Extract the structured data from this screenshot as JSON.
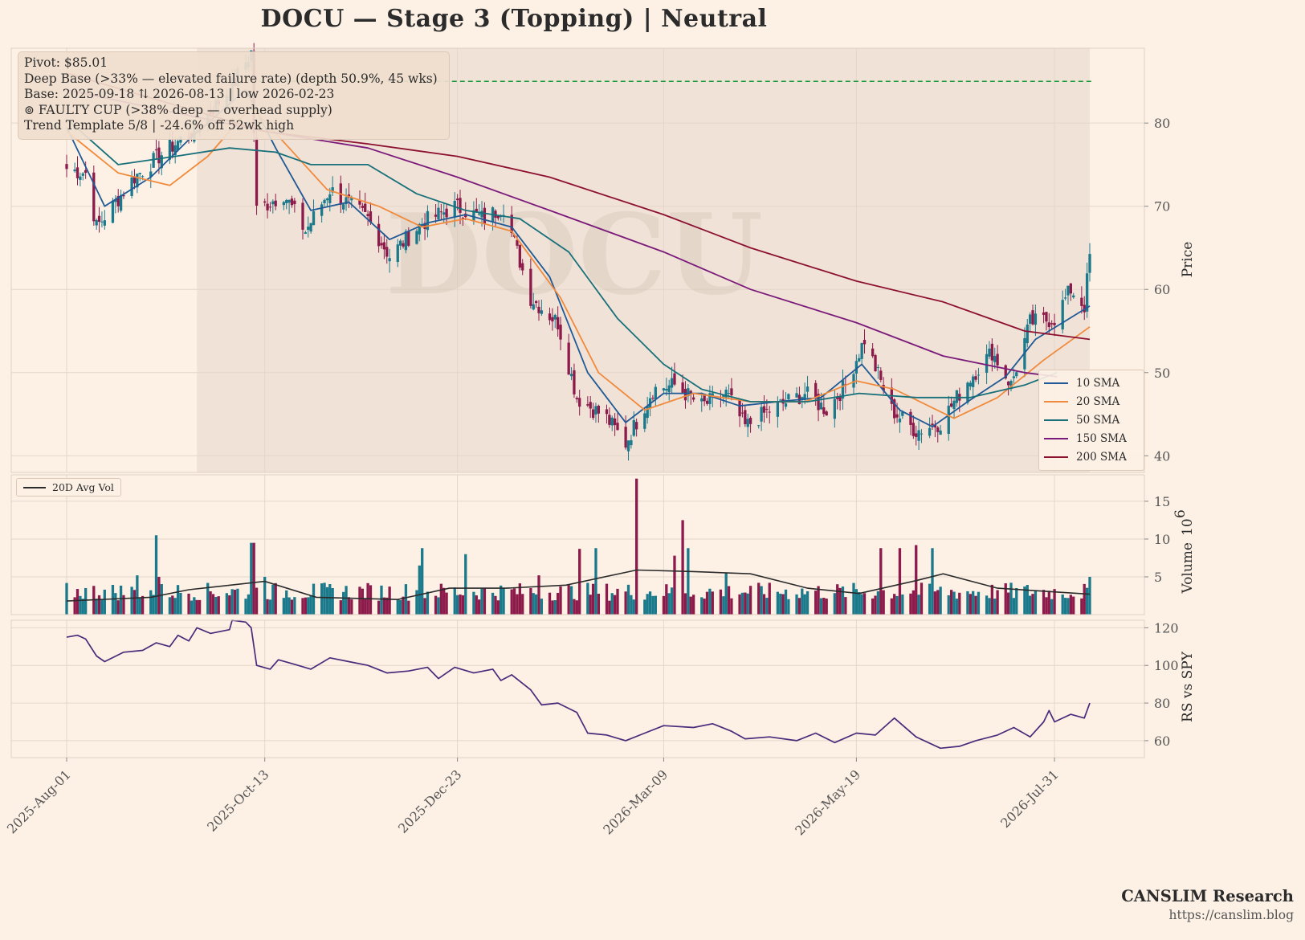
{
  "title": "DOCU  —  Stage 3 (Topping)  |  Neutral",
  "watermark": "DOCU",
  "info_box": {
    "lines": [
      "Pivot: $85.01",
      "Deep Base (>33% — elevated failure rate)  (depth 50.9%, 45 wks)",
      "Base: 2025-09-18 ⇅ 2026-08-13  |  low 2026-02-23",
      "⊚ FAULTY CUP (>38% deep — overhead supply)",
      "Trend Template 5/8  |  -24.6% off 52wk high"
    ]
  },
  "legend": {
    "sma": [
      {
        "label": "10 SMA",
        "color": "#1f5a96"
      },
      {
        "label": "20 SMA",
        "color": "#f08a3c"
      },
      {
        "label": "50 SMA",
        "color": "#17707a"
      },
      {
        "label": "150 SMA",
        "color": "#7a1a7a"
      },
      {
        "label": "200 SMA",
        "color": "#8c1030"
      }
    ],
    "volume": "20D Avg Vol"
  },
  "brand": {
    "name": "CANSLIM Research",
    "url": "https://canslim.blog"
  },
  "colors": {
    "background": "#fdf1e6",
    "up_candle": "#1a7a8c",
    "down_candle": "#8c1a4a",
    "pivot_line": "#1a9a3a",
    "rs_line": "#4a2a7a",
    "base_shade": "#e8d6cb"
  },
  "chart_data": {
    "type": "candlestick",
    "x_tick_labels": [
      "2025-Aug-01",
      "2025-Oct-13",
      "2025-Dec-23",
      "2026-Mar-09",
      "2026-May-19",
      "2026-Jul-31"
    ],
    "x_range": [
      "2025-08-01",
      "2026-08-13"
    ],
    "price": {
      "ylabel": "Price",
      "yticks": [
        40,
        50,
        60,
        70,
        80
      ],
      "ylim": [
        38,
        89
      ],
      "pivot": 85.01,
      "base_start": "2025-09-18",
      "base_end": "2026-08-13",
      "anchors": [
        {
          "date": "2025-08-01",
          "close": 74.5
        },
        {
          "date": "2025-08-08",
          "close": 74.0
        },
        {
          "date": "2025-08-12",
          "close": 67.5
        },
        {
          "date": "2025-08-19",
          "close": 70.5
        },
        {
          "date": "2025-08-26",
          "close": 73.5
        },
        {
          "date": "2025-09-04",
          "close": 76.0
        },
        {
          "date": "2025-09-18",
          "close": 79.5
        },
        {
          "date": "2025-10-01",
          "close": 84.5
        },
        {
          "date": "2025-10-08",
          "close": 88.5
        },
        {
          "date": "2025-10-10",
          "close": 69.5
        },
        {
          "date": "2025-10-20",
          "close": 71.5
        },
        {
          "date": "2025-10-28",
          "close": 67.0
        },
        {
          "date": "2025-11-06",
          "close": 72.0
        },
        {
          "date": "2025-11-20",
          "close": 68.5
        },
        {
          "date": "2025-11-28",
          "close": 64.0
        },
        {
          "date": "2025-12-10",
          "close": 68.0
        },
        {
          "date": "2025-12-22",
          "close": 70.0
        },
        {
          "date": "2026-01-02",
          "close": 68.5
        },
        {
          "date": "2026-01-09",
          "close": 70.0
        },
        {
          "date": "2026-01-19",
          "close": 59.0
        },
        {
          "date": "2026-01-29",
          "close": 56.0
        },
        {
          "date": "2026-02-05",
          "close": 47.0
        },
        {
          "date": "2026-02-16",
          "close": 44.5
        },
        {
          "date": "2026-02-23",
          "close": 41.5
        },
        {
          "date": "2026-03-05",
          "close": 48.0
        },
        {
          "date": "2026-03-13",
          "close": 48.5
        },
        {
          "date": "2026-03-23",
          "close": 46.0
        },
        {
          "date": "2026-04-01",
          "close": 47.5
        },
        {
          "date": "2026-04-08",
          "close": 43.5
        },
        {
          "date": "2026-04-17",
          "close": 45.5
        },
        {
          "date": "2026-04-30",
          "close": 47.5
        },
        {
          "date": "2026-05-08",
          "close": 45.5
        },
        {
          "date": "2026-05-15",
          "close": 48.5
        },
        {
          "date": "2026-05-22",
          "close": 54.0
        },
        {
          "date": "2026-06-01",
          "close": 45.5
        },
        {
          "date": "2026-06-10",
          "close": 43.0
        },
        {
          "date": "2026-06-19",
          "close": 44.0
        },
        {
          "date": "2026-06-29",
          "close": 49.0
        },
        {
          "date": "2026-07-08",
          "close": 52.5
        },
        {
          "date": "2026-07-15",
          "close": 48.5
        },
        {
          "date": "2026-07-22",
          "close": 56.0
        },
        {
          "date": "2026-07-31",
          "close": 56.5
        },
        {
          "date": "2026-08-06",
          "close": 60.0
        },
        {
          "date": "2026-08-11",
          "close": 58.0
        },
        {
          "date": "2026-08-13",
          "close": 64.0
        }
      ],
      "sma": {
        "10 SMA": [
          [
            "2025-08-01",
            79.5
          ],
          [
            "2025-08-15",
            70.0
          ],
          [
            "2025-09-01",
            73.5
          ],
          [
            "2025-09-15",
            78.0
          ],
          [
            "2025-10-06",
            84.0
          ],
          [
            "2025-10-17",
            77.0
          ],
          [
            "2025-10-30",
            69.5
          ],
          [
            "2025-11-13",
            70.5
          ],
          [
            "2025-11-28",
            66.0
          ],
          [
            "2025-12-12",
            68.0
          ],
          [
            "2025-12-26",
            69.0
          ],
          [
            "2026-01-12",
            67.5
          ],
          [
            "2026-01-26",
            61.5
          ],
          [
            "2026-02-09",
            50.0
          ],
          [
            "2026-02-23",
            44.0
          ],
          [
            "2026-03-09",
            47.5
          ],
          [
            "2026-03-23",
            47.5
          ],
          [
            "2026-04-06",
            46.0
          ],
          [
            "2026-04-20",
            46.5
          ],
          [
            "2026-05-06",
            47.0
          ],
          [
            "2026-05-21",
            51.0
          ],
          [
            "2026-06-04",
            45.5
          ],
          [
            "2026-06-16",
            43.5
          ],
          [
            "2026-06-29",
            46.5
          ],
          [
            "2026-07-13",
            49.5
          ],
          [
            "2026-07-24",
            54.0
          ],
          [
            "2026-08-13",
            58.0
          ]
        ],
        "20 SMA": [
          [
            "2025-08-01",
            79.0
          ],
          [
            "2025-08-20",
            74.0
          ],
          [
            "2025-09-08",
            72.5
          ],
          [
            "2025-09-22",
            76.0
          ],
          [
            "2025-10-08",
            82.0
          ],
          [
            "2025-10-22",
            77.0
          ],
          [
            "2025-11-05",
            72.0
          ],
          [
            "2025-11-24",
            70.0
          ],
          [
            "2025-12-10",
            67.5
          ],
          [
            "2025-12-26",
            68.5
          ],
          [
            "2026-01-12",
            67.0
          ],
          [
            "2026-01-30",
            59.0
          ],
          [
            "2026-02-13",
            50.0
          ],
          [
            "2026-03-02",
            45.5
          ],
          [
            "2026-03-20",
            47.5
          ],
          [
            "2026-04-10",
            46.5
          ],
          [
            "2026-04-30",
            46.5
          ],
          [
            "2026-05-19",
            49.0
          ],
          [
            "2026-06-02",
            48.0
          ],
          [
            "2026-06-24",
            44.5
          ],
          [
            "2026-07-10",
            47.0
          ],
          [
            "2026-07-27",
            51.5
          ],
          [
            "2026-08-13",
            55.5
          ]
        ],
        "50 SMA": [
          [
            "2025-08-01",
            80.5
          ],
          [
            "2025-08-20",
            75.0
          ],
          [
            "2025-09-10",
            76.0
          ],
          [
            "2025-09-30",
            77.0
          ],
          [
            "2025-10-17",
            76.5
          ],
          [
            "2025-10-30",
            75.0
          ],
          [
            "2025-11-20",
            75.0
          ],
          [
            "2025-12-08",
            71.5
          ],
          [
            "2025-12-26",
            69.5
          ],
          [
            "2026-01-15",
            68.5
          ],
          [
            "2026-02-02",
            64.5
          ],
          [
            "2026-02-20",
            56.5
          ],
          [
            "2026-03-09",
            51.0
          ],
          [
            "2026-03-23",
            48.0
          ],
          [
            "2026-04-10",
            46.5
          ],
          [
            "2026-05-01",
            46.5
          ],
          [
            "2026-05-20",
            47.5
          ],
          [
            "2026-06-10",
            47.0
          ],
          [
            "2026-06-30",
            47.0
          ],
          [
            "2026-07-20",
            48.5
          ],
          [
            "2026-08-01",
            50.0
          ]
        ],
        "150 SMA": [
          [
            "2025-08-01",
            84.0
          ],
          [
            "2025-10-13",
            79.0
          ],
          [
            "2025-11-20",
            77.0
          ],
          [
            "2025-12-23",
            73.5
          ],
          [
            "2026-01-26",
            69.5
          ],
          [
            "2026-03-09",
            64.5
          ],
          [
            "2026-04-10",
            60.0
          ],
          [
            "2026-05-19",
            56.0
          ],
          [
            "2026-06-20",
            52.0
          ],
          [
            "2026-07-20",
            50.0
          ],
          [
            "2026-08-01",
            49.5
          ]
        ],
        "200 SMA": [
          [
            "2025-08-01",
            86.0
          ],
          [
            "2025-10-13",
            79.0
          ],
          [
            "2025-11-20",
            77.5
          ],
          [
            "2025-12-23",
            76.0
          ],
          [
            "2026-01-26",
            73.5
          ],
          [
            "2026-03-09",
            69.0
          ],
          [
            "2026-04-10",
            65.0
          ],
          [
            "2026-05-19",
            61.0
          ],
          [
            "2026-06-20",
            58.5
          ],
          [
            "2026-07-20",
            55.0
          ],
          [
            "2026-08-13",
            54.0
          ]
        ]
      }
    },
    "volume": {
      "ylabel": "Volume",
      "unit": "10^6",
      "yticks": [
        5,
        10,
        15
      ],
      "ylim": [
        0,
        18.5
      ],
      "base_level": 2.8,
      "spikes": [
        {
          "date": "2025-08-27",
          "value": 5.2
        },
        {
          "date": "2025-09-03",
          "value": 10.5
        },
        {
          "date": "2025-09-04",
          "value": 5.0
        },
        {
          "date": "2025-10-08",
          "value": 9.5
        },
        {
          "date": "2025-10-09",
          "value": 9.5
        },
        {
          "date": "2025-10-13",
          "value": 5.0
        },
        {
          "date": "2025-12-09",
          "value": 6.5
        },
        {
          "date": "2025-12-10",
          "value": 8.8
        },
        {
          "date": "2025-12-26",
          "value": 8.0
        },
        {
          "date": "2026-01-22",
          "value": 5.2
        },
        {
          "date": "2026-02-06",
          "value": 8.7
        },
        {
          "date": "2026-02-12",
          "value": 8.8
        },
        {
          "date": "2026-02-27",
          "value": 18.0
        },
        {
          "date": "2026-03-13",
          "value": 7.8
        },
        {
          "date": "2026-03-16",
          "value": 12.5
        },
        {
          "date": "2026-03-18",
          "value": 8.8
        },
        {
          "date": "2026-04-01",
          "value": 5.5
        },
        {
          "date": "2026-05-28",
          "value": 8.8
        },
        {
          "date": "2026-06-04",
          "value": 8.8
        },
        {
          "date": "2026-06-10",
          "value": 9.2
        },
        {
          "date": "2026-06-16",
          "value": 8.8
        },
        {
          "date": "2026-08-13",
          "value": 5.0
        }
      ],
      "avg_line": [
        [
          "2025-08-01",
          1.8
        ],
        [
          "2025-09-01",
          2.3
        ],
        [
          "2025-09-15",
          3.3
        ],
        [
          "2025-10-13",
          4.4
        ],
        [
          "2025-11-01",
          2.3
        ],
        [
          "2025-12-01",
          2.0
        ],
        [
          "2025-12-20",
          3.5
        ],
        [
          "2026-01-10",
          3.5
        ],
        [
          "2026-02-01",
          3.9
        ],
        [
          "2026-02-27",
          5.9
        ],
        [
          "2026-03-20",
          5.7
        ],
        [
          "2026-04-10",
          5.4
        ],
        [
          "2026-05-01",
          3.5
        ],
        [
          "2026-05-20",
          2.8
        ],
        [
          "2026-06-10",
          4.5
        ],
        [
          "2026-06-20",
          5.4
        ],
        [
          "2026-07-10",
          3.5
        ],
        [
          "2026-08-13",
          2.7
        ]
      ]
    },
    "rs": {
      "ylabel": "RS vs SPY",
      "yticks": [
        60,
        80,
        100,
        120
      ],
      "ylim": [
        51,
        124
      ],
      "anchors": [
        [
          "2025-08-01",
          115
        ],
        [
          "2025-08-05",
          116
        ],
        [
          "2025-08-08",
          114
        ],
        [
          "2025-08-12",
          105
        ],
        [
          "2025-08-15",
          102
        ],
        [
          "2025-08-22",
          107
        ],
        [
          "2025-08-29",
          108
        ],
        [
          "2025-09-03",
          112
        ],
        [
          "2025-09-08",
          110
        ],
        [
          "2025-09-11",
          116
        ],
        [
          "2025-09-15",
          113
        ],
        [
          "2025-09-18",
          120
        ],
        [
          "2025-09-23",
          117
        ],
        [
          "2025-09-30",
          119
        ],
        [
          "2025-10-01",
          124
        ],
        [
          "2025-10-06",
          123
        ],
        [
          "2025-10-08",
          120
        ],
        [
          "2025-10-10",
          100
        ],
        [
          "2025-10-15",
          98
        ],
        [
          "2025-10-18",
          103
        ],
        [
          "2025-10-23",
          101
        ],
        [
          "2025-10-30",
          98
        ],
        [
          "2025-11-06",
          104
        ],
        [
          "2025-11-13",
          102
        ],
        [
          "2025-11-20",
          100
        ],
        [
          "2025-11-27",
          96
        ],
        [
          "2025-12-05",
          97
        ],
        [
          "2025-12-12",
          99
        ],
        [
          "2025-12-16",
          93
        ],
        [
          "2025-12-22",
          99
        ],
        [
          "2025-12-29",
          96
        ],
        [
          "2026-01-05",
          98
        ],
        [
          "2026-01-08",
          92
        ],
        [
          "2026-01-12",
          95
        ],
        [
          "2026-01-19",
          87
        ],
        [
          "2026-01-23",
          79
        ],
        [
          "2026-01-29",
          80
        ],
        [
          "2026-02-05",
          75
        ],
        [
          "2026-02-09",
          64
        ],
        [
          "2026-02-16",
          63
        ],
        [
          "2026-02-23",
          60
        ],
        [
          "2026-03-02",
          64
        ],
        [
          "2026-03-09",
          68
        ],
        [
          "2026-03-20",
          67
        ],
        [
          "2026-03-27",
          69
        ],
        [
          "2026-04-03",
          65
        ],
        [
          "2026-04-08",
          61
        ],
        [
          "2026-04-17",
          62
        ],
        [
          "2026-04-27",
          60
        ],
        [
          "2026-05-04",
          64
        ],
        [
          "2026-05-11",
          59
        ],
        [
          "2026-05-19",
          64
        ],
        [
          "2026-05-26",
          63
        ],
        [
          "2026-06-02",
          72
        ],
        [
          "2026-06-10",
          62
        ],
        [
          "2026-06-19",
          56
        ],
        [
          "2026-06-26",
          57
        ],
        [
          "2026-07-02",
          60
        ],
        [
          "2026-07-10",
          63
        ],
        [
          "2026-07-16",
          67
        ],
        [
          "2026-07-22",
          62
        ],
        [
          "2026-07-27",
          70
        ],
        [
          "2026-07-29",
          76
        ],
        [
          "2026-07-31",
          70
        ],
        [
          "2026-08-06",
          74
        ],
        [
          "2026-08-11",
          72
        ],
        [
          "2026-08-13",
          80
        ]
      ]
    }
  }
}
